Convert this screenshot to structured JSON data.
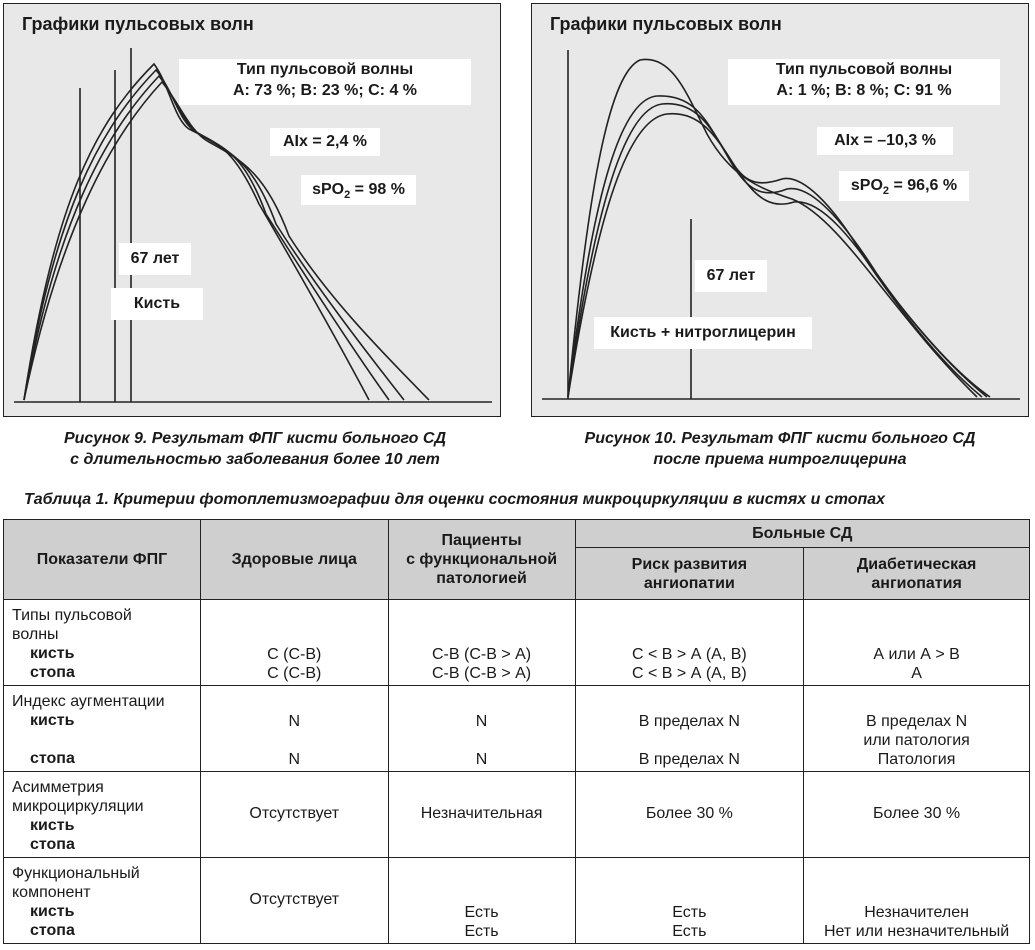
{
  "fig9": {
    "title": "Графики пульсовых волн",
    "wave_type_label": "Тип пульсовой волны",
    "wave_type_values": "A: 73 %; B: 23 %; C: 4 %",
    "aix": "AIx = 2,4 %",
    "spo2_prefix": "sPO",
    "spo2_sub": "2",
    "spo2_value": " = 98 %",
    "age": "67 лет",
    "site": "Кисть",
    "caption_line1": "Рисунок 9. Результат ФПГ кисти больного СД",
    "caption_line2": "с длительностью заболевания более 10 лет"
  },
  "fig10": {
    "title": "Графики пульсовых волн",
    "wave_type_label": "Тип пульсовой волны",
    "wave_type_values": "A: 1 %; B: 8 %; C: 91 %",
    "aix": "AIx = –10,3 %",
    "spo2_prefix": "sPO",
    "spo2_sub": "2",
    "spo2_value": " = 96,6 %",
    "age": "67 лет",
    "site": "Кисть + нитроглицерин",
    "caption_line1": "Рисунок 10. Результат ФПГ кисти больного СД",
    "caption_line2": "после приема нитроглицерина"
  },
  "table": {
    "title": "Таблица 1. Критерии фотоплетизмографии для оценки состояния микроциркуляции в кистях и стопах",
    "headers": {
      "indicators": "Показатели ФПГ",
      "healthy": "Здоровые лица",
      "functional_1": "Пациенты",
      "functional_2": "с функциональной",
      "functional_3": "патологией",
      "sd_group": "Больные СД",
      "risk_1": "Риск развития",
      "risk_2": "ангиопатии",
      "diab_1": "Диабетическая",
      "diab_2": "ангиопатия"
    },
    "rows": [
      {
        "label_1": "Типы пульсовой",
        "label_2": "волны",
        "sub_1": "кисть",
        "sub_2": "стопа",
        "healthy_1": "С (С-В)",
        "healthy_2": "С (С-В)",
        "functional_1": "С-В (С-В > А)",
        "functional_2": "С-В (С-В > А)",
        "risk_1": "С < В > А (А, В)",
        "risk_2": "С < В > А (А, В)",
        "diab_1": "А или А > В",
        "diab_2": "А"
      },
      {
        "label_1": "Индекс аугментации",
        "sub_1": "кисть",
        "sub_2": "стопа",
        "healthy_1": "N",
        "healthy_2": "N",
        "functional_1": "N",
        "functional_2": "N",
        "risk_1": "В пределах N",
        "risk_2": "В пределах N",
        "diab_1a": "В пределах N",
        "diab_1b": "или патология",
        "diab_2": "Патология"
      },
      {
        "label_1": "Асимметрия",
        "label_2": "микроциркуляции",
        "sub_1": "кисть",
        "sub_2": "стопа",
        "healthy": "Отсутствует",
        "functional": "Незначительная",
        "risk": "Более 30 %",
        "diab": "Более 30 %"
      },
      {
        "label_1": "Функциональный",
        "label_2": "компонент",
        "sub_1": "кисть",
        "sub_2": "стопа",
        "healthy": "Отсутствует",
        "functional_1": "Есть",
        "functional_2": "Есть",
        "risk_1": "Есть",
        "risk_2": "Есть",
        "diab_1": "Незначителен",
        "diab_2": "Нет или незначительный"
      }
    ]
  }
}
